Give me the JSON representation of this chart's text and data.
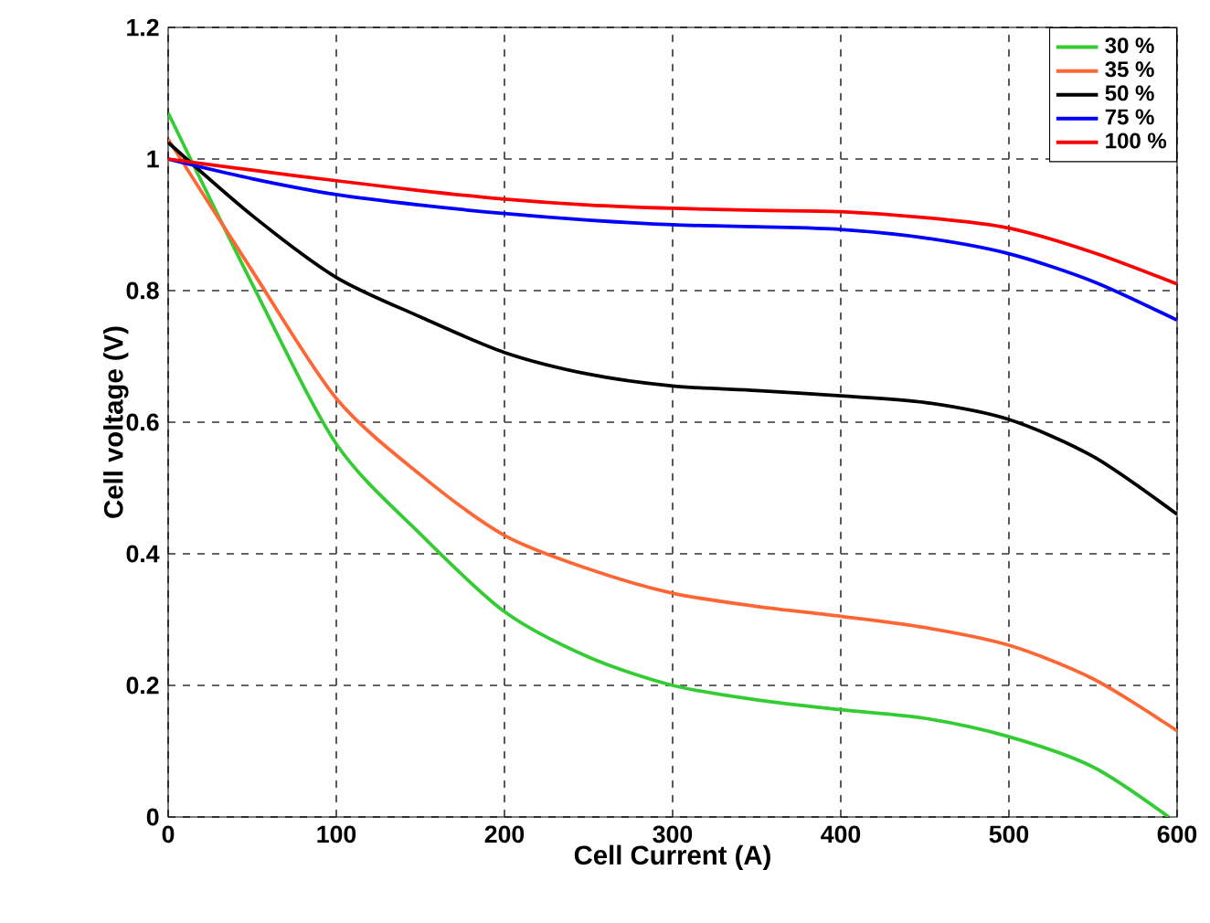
{
  "chart_data": {
    "type": "line",
    "xlabel": "Cell Current (A)",
    "ylabel": "Cell voltage (V)",
    "x": [
      0,
      50,
      100,
      150,
      200,
      250,
      300,
      350,
      400,
      450,
      500,
      550,
      600
    ],
    "series": [
      {
        "name": "30 %",
        "color": "#33cc33",
        "x": [
          0,
          50,
          100,
          150,
          200,
          250,
          300,
          350,
          400,
          450,
          500,
          550,
          595
        ],
        "values": [
          1.07,
          0.81,
          0.567,
          0.43,
          0.312,
          0.243,
          0.2,
          0.178,
          0.163,
          0.15,
          0.122,
          0.076,
          0
        ]
      },
      {
        "name": "35 %",
        "color": "#ff6633",
        "values": [
          1.03,
          0.83,
          0.636,
          0.52,
          0.428,
          0.377,
          0.34,
          0.32,
          0.305,
          0.288,
          0.261,
          0.21,
          0.131
        ]
      },
      {
        "name": "50 %",
        "color": "#000000",
        "values": [
          1.025,
          0.914,
          0.82,
          0.76,
          0.706,
          0.673,
          0.655,
          0.648,
          0.64,
          0.63,
          0.604,
          0.548,
          0.46
        ]
      },
      {
        "name": "75 %",
        "color": "#0000ff",
        "values": [
          1.0,
          0.97,
          0.946,
          0.93,
          0.917,
          0.907,
          0.9,
          0.897,
          0.893,
          0.88,
          0.856,
          0.814,
          0.755
        ]
      },
      {
        "name": "100 %",
        "color": "#ff0000",
        "values": [
          1.0,
          0.983,
          0.967,
          0.952,
          0.939,
          0.93,
          0.925,
          0.922,
          0.92,
          0.911,
          0.895,
          0.858,
          0.81
        ]
      }
    ],
    "xlim": [
      0,
      600
    ],
    "ylim": [
      0,
      1.2
    ],
    "xticks": [
      0,
      100,
      200,
      300,
      400,
      500,
      600
    ],
    "yticks": [
      0,
      0.2,
      0.4,
      0.6,
      0.8,
      1,
      1.2
    ],
    "grid": true,
    "legend": "top right",
    "line_style": "solid",
    "marker": "none"
  }
}
